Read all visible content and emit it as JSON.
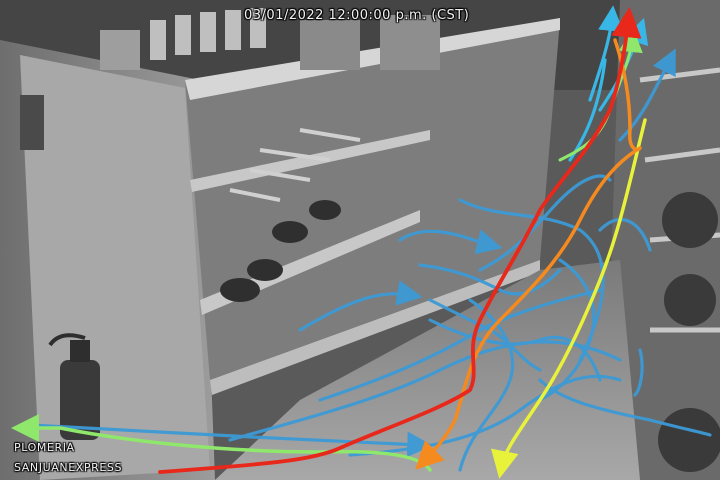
{
  "overlay": {
    "timestamp": "03/01/2022 12:00:00 p.m. (CST)",
    "labels": [
      "PLOMERIA",
      "SANJUANEXPRESS"
    ]
  },
  "scene": {
    "description_colors": {
      "shelf": "#d6d6d6",
      "floor": "#9a9a9a",
      "background": "#5e5e5e"
    }
  },
  "tracks": {
    "colors": {
      "blue": "#3d9ad6",
      "cyan": "#38b7e6",
      "green": "#8fe86b",
      "yellow": "#e8f23a",
      "orange": "#f58a1f",
      "red": "#e8281a"
    }
  }
}
